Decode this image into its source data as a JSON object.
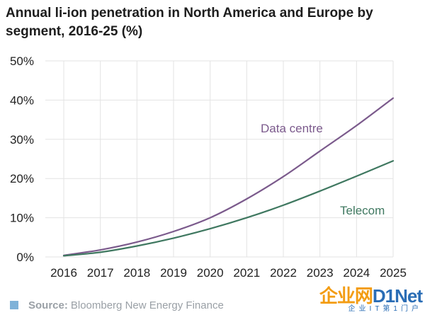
{
  "chart_data": {
    "type": "line",
    "title": "Annual li-ion penetration in North America and Europe by segment, 2016-25 (%)",
    "x": [
      "2016",
      "2017",
      "2018",
      "2019",
      "2020",
      "2021",
      "2022",
      "2023",
      "2024",
      "2025"
    ],
    "yticks": [
      "0%",
      "10%",
      "20%",
      "30%",
      "40%",
      "50%"
    ],
    "ylim": [
      0,
      50
    ],
    "grid": true,
    "series": [
      {
        "name": "Data centre",
        "color": "#7b5a8c",
        "values": [
          0.4,
          1.8,
          3.8,
          6.5,
          10.0,
          14.8,
          20.5,
          27.0,
          33.5,
          40.5
        ]
      },
      {
        "name": "Telecom",
        "color": "#3f7860",
        "values": [
          0.3,
          1.2,
          2.8,
          4.8,
          7.2,
          10.0,
          13.2,
          16.8,
          20.6,
          24.5
        ]
      }
    ]
  },
  "source": {
    "prefix": "Source:",
    "text": "Bloomberg New Energy Finance"
  },
  "watermark": {
    "cn": "企业网",
    "en": "D1Net",
    "sub": "企业IT第1门户"
  }
}
